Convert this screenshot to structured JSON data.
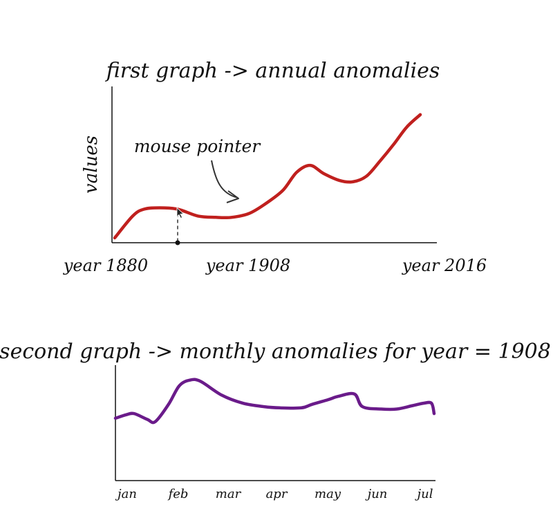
{
  "colors": {
    "annual_line": "#c0201e",
    "monthly_line": "#6a1b8a",
    "axis": "#111111",
    "annotation": "#333333"
  },
  "annotation": {
    "label": "mouse pointer",
    "hover_year": 1908
  },
  "chart_data": [
    {
      "type": "line",
      "title": "first graph -> annual anomalies",
      "xlabel": "",
      "ylabel": "values",
      "tick_labels": [
        "year 1880",
        "year 1908",
        "year 2016"
      ],
      "xlim": [
        1880,
        2016
      ],
      "ylim": [
        0,
        1
      ],
      "grid": false,
      "legend": "none",
      "x": [
        1880,
        1888,
        1893,
        1900,
        1908,
        1917,
        1925,
        1932,
        1940,
        1948,
        1955,
        1961,
        1967,
        1973,
        1980,
        1986,
        1992,
        1998,
        2004,
        2010,
        2016
      ],
      "y": [
        0.02,
        0.18,
        0.23,
        0.24,
        0.23,
        0.18,
        0.17,
        0.17,
        0.2,
        0.28,
        0.37,
        0.5,
        0.55,
        0.49,
        0.44,
        0.43,
        0.47,
        0.58,
        0.7,
        0.83,
        0.92
      ]
    },
    {
      "type": "line",
      "title": "second graph -> monthly anomalies for year = 1908",
      "xlabel": "",
      "ylabel": "",
      "categories": [
        "jan",
        "feb",
        "mar",
        "apr",
        "may",
        "jun",
        "jul"
      ],
      "xlim": [
        0,
        6
      ],
      "ylim": [
        0,
        1
      ],
      "grid": false,
      "legend": "none",
      "x": [
        0,
        0.2,
        0.35,
        0.6,
        0.75,
        1.0,
        1.2,
        1.4,
        1.6,
        2.0,
        2.4,
        2.8,
        3.1,
        3.5,
        3.7,
        4.0,
        4.2,
        4.5,
        4.65,
        5.0,
        5.3,
        5.6,
        5.8,
        5.95,
        6.0
      ],
      "y": [
        0.54,
        0.57,
        0.58,
        0.53,
        0.51,
        0.66,
        0.82,
        0.87,
        0.86,
        0.74,
        0.67,
        0.64,
        0.63,
        0.63,
        0.66,
        0.7,
        0.73,
        0.75,
        0.64,
        0.62,
        0.62,
        0.65,
        0.67,
        0.67,
        0.58
      ]
    }
  ]
}
